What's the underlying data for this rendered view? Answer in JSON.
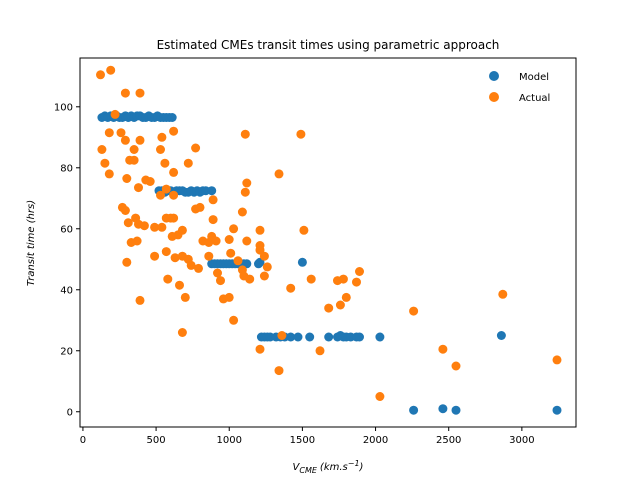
{
  "chart_data": {
    "type": "scatter",
    "title": "Estimated CMEs transit times using parametric approach",
    "xlabel_main": "V",
    "xlabel_sub": "CME",
    "xlabel_unit_base": "(km.s",
    "xlabel_unit_sup": "−1",
    "xlabel_unit_close": ")",
    "ylabel": "Transit time (hrs)",
    "xlim": [
      -20,
      3370
    ],
    "ylim": [
      -5,
      116
    ],
    "xticks": [
      0,
      500,
      1000,
      1500,
      2000,
      2500,
      3000
    ],
    "yticks": [
      0,
      20,
      40,
      60,
      80,
      100
    ],
    "legend_position": "top-right",
    "series": [
      {
        "name": "Model",
        "color": "#1f77b4",
        "points": [
          [
            130,
            96.5
          ],
          [
            150,
            97
          ],
          [
            170,
            96.5
          ],
          [
            190,
            97
          ],
          [
            210,
            96.5
          ],
          [
            230,
            97
          ],
          [
            250,
            96.5
          ],
          [
            270,
            96.5
          ],
          [
            290,
            97
          ],
          [
            310,
            96.5
          ],
          [
            330,
            97
          ],
          [
            350,
            96.5
          ],
          [
            370,
            97
          ],
          [
            390,
            97
          ],
          [
            410,
            96.5
          ],
          [
            430,
            96.5
          ],
          [
            450,
            97
          ],
          [
            470,
            96.5
          ],
          [
            490,
            96.5
          ],
          [
            510,
            97
          ],
          [
            530,
            96.5
          ],
          [
            550,
            96.5
          ],
          [
            570,
            96.5
          ],
          [
            590,
            96.5
          ],
          [
            610,
            96.5
          ],
          [
            520,
            72.5
          ],
          [
            540,
            72.5
          ],
          [
            560,
            72
          ],
          [
            580,
            72.5
          ],
          [
            600,
            72.5
          ],
          [
            620,
            72
          ],
          [
            640,
            72.5
          ],
          [
            660,
            72.5
          ],
          [
            680,
            72.5
          ],
          [
            700,
            72
          ],
          [
            720,
            72
          ],
          [
            740,
            72.5
          ],
          [
            760,
            72
          ],
          [
            780,
            72.5
          ],
          [
            800,
            72
          ],
          [
            820,
            72.5
          ],
          [
            840,
            72.5
          ],
          [
            880,
            72.5
          ],
          [
            880,
            48.5
          ],
          [
            900,
            48.5
          ],
          [
            920,
            48.5
          ],
          [
            940,
            48.5
          ],
          [
            960,
            48.5
          ],
          [
            980,
            48.5
          ],
          [
            1000,
            48.5
          ],
          [
            1020,
            48.5
          ],
          [
            1040,
            48.5
          ],
          [
            1060,
            48.5
          ],
          [
            1080,
            48.5
          ],
          [
            1100,
            48.5
          ],
          [
            1120,
            48.5
          ],
          [
            1200,
            48.5
          ],
          [
            1210,
            49
          ],
          [
            1500,
            49
          ],
          [
            1220,
            24.5
          ],
          [
            1240,
            24.5
          ],
          [
            1260,
            24.5
          ],
          [
            1280,
            24.5
          ],
          [
            1320,
            24.5
          ],
          [
            1350,
            24.5
          ],
          [
            1380,
            24.5
          ],
          [
            1420,
            24.5
          ],
          [
            1470,
            24.5
          ],
          [
            1550,
            24.5
          ],
          [
            1680,
            24.5
          ],
          [
            1740,
            24.5
          ],
          [
            1760,
            25
          ],
          [
            1780,
            24.5
          ],
          [
            1800,
            24.5
          ],
          [
            1830,
            24.5
          ],
          [
            1870,
            24.5
          ],
          [
            1890,
            24.5
          ],
          [
            2030,
            24.5
          ],
          [
            2860,
            25
          ],
          [
            2260,
            0.5
          ],
          [
            2460,
            1
          ],
          [
            2550,
            0.5
          ],
          [
            3240,
            0.5
          ]
        ]
      },
      {
        "name": "Actual",
        "color": "#ff7f0e",
        "points": [
          [
            120,
            110.5
          ],
          [
            190,
            112
          ],
          [
            220,
            97.5
          ],
          [
            290,
            104.5
          ],
          [
            390,
            104.5
          ],
          [
            130,
            86
          ],
          [
            150,
            81.5
          ],
          [
            180,
            91.5
          ],
          [
            180,
            78
          ],
          [
            260,
            91.5
          ],
          [
            290,
            89
          ],
          [
            300,
            76.5
          ],
          [
            320,
            82.5
          ],
          [
            350,
            82.5
          ],
          [
            350,
            86
          ],
          [
            390,
            89
          ],
          [
            380,
            73.5
          ],
          [
            430,
            76
          ],
          [
            460,
            75.5
          ],
          [
            540,
            90
          ],
          [
            530,
            86
          ],
          [
            560,
            81.5
          ],
          [
            620,
            92
          ],
          [
            620,
            78.5
          ],
          [
            530,
            71
          ],
          [
            570,
            73
          ],
          [
            620,
            71
          ],
          [
            720,
            81.5
          ],
          [
            770,
            86.5
          ],
          [
            770,
            66.5
          ],
          [
            800,
            67
          ],
          [
            890,
            69.5
          ],
          [
            1110,
            91
          ],
          [
            270,
            67
          ],
          [
            290,
            66
          ],
          [
            310,
            62
          ],
          [
            360,
            63.5
          ],
          [
            380,
            61.5
          ],
          [
            420,
            61
          ],
          [
            370,
            56
          ],
          [
            330,
            55.5
          ],
          [
            390,
            36.5
          ],
          [
            300,
            49
          ],
          [
            490,
            51
          ],
          [
            490,
            60.5
          ],
          [
            540,
            60.5
          ],
          [
            570,
            63.5
          ],
          [
            600,
            63.5
          ],
          [
            620,
            63.5
          ],
          [
            650,
            58
          ],
          [
            680,
            59.5
          ],
          [
            610,
            57.5
          ],
          [
            570,
            52.5
          ],
          [
            580,
            43.5
          ],
          [
            630,
            50.5
          ],
          [
            680,
            51
          ],
          [
            720,
            50
          ],
          [
            740,
            48
          ],
          [
            790,
            47
          ],
          [
            820,
            56
          ],
          [
            860,
            55.5
          ],
          [
            880,
            57.5
          ],
          [
            890,
            63
          ],
          [
            910,
            56
          ],
          [
            860,
            51
          ],
          [
            920,
            45.5
          ],
          [
            940,
            43
          ],
          [
            960,
            37
          ],
          [
            1000,
            37.5
          ],
          [
            1010,
            52
          ],
          [
            1000,
            56.5
          ],
          [
            1030,
            60
          ],
          [
            1060,
            49.5
          ],
          [
            1090,
            46.5
          ],
          [
            1100,
            44.5
          ],
          [
            1090,
            65.5
          ],
          [
            1110,
            72
          ],
          [
            1120,
            56
          ],
          [
            1140,
            43.5
          ],
          [
            1120,
            75
          ],
          [
            660,
            41.5
          ],
          [
            700,
            37.5
          ],
          [
            680,
            26
          ],
          [
            1030,
            30
          ],
          [
            1210,
            59.5
          ],
          [
            1210,
            54.5
          ],
          [
            1210,
            53
          ],
          [
            1240,
            51
          ],
          [
            1260,
            47.5
          ],
          [
            1240,
            44.5
          ],
          [
            1340,
            78
          ],
          [
            1490,
            91
          ],
          [
            1510,
            59.5
          ],
          [
            1420,
            40.5
          ],
          [
            1560,
            43.5
          ],
          [
            1620,
            20
          ],
          [
            1210,
            20.5
          ],
          [
            1340,
            13.5
          ],
          [
            1360,
            25
          ],
          [
            1680,
            34
          ],
          [
            1740,
            43
          ],
          [
            1760,
            35
          ],
          [
            1780,
            43.5
          ],
          [
            1800,
            37.5
          ],
          [
            1870,
            42.5
          ],
          [
            1890,
            46
          ],
          [
            2030,
            5
          ],
          [
            2260,
            33
          ],
          [
            2460,
            20.5
          ],
          [
            2550,
            15
          ],
          [
            2870,
            38.5
          ],
          [
            3240,
            17
          ]
        ]
      }
    ]
  }
}
